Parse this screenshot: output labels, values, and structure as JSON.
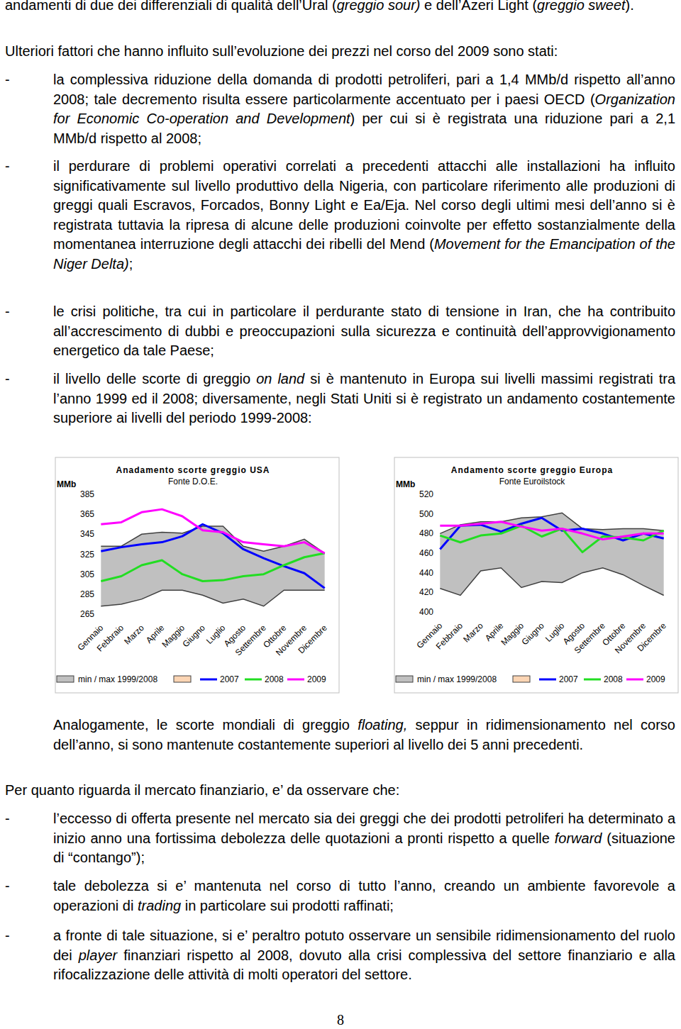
{
  "text_before": [
    {
      "runs": [
        "andamenti di due dei differenziali di qualità dell’Ural (",
        {
          "italic": "greggio sour)"
        },
        " e dell’Azeri Light (",
        {
          "italic": "greggio sweet"
        },
        ")."
      ]
    },
    {
      "runs": [
        "Ulteriori fattori che hanno influito sull’evoluzione dei prezzi nel corso del 2009 sono stati:"
      ]
    }
  ],
  "bullet": "-",
  "factors": [
    {
      "runs": [
        "la complessiva riduzione della domanda di prodotti petroliferi, pari a 1,4 MMb/d rispetto all’anno 2008; tale decremento risulta essere particolarmente accentuato per i paesi OECD (",
        {
          "italic": "Organization for Economic Co-operation and Development"
        },
        ") per cui si è registrata una riduzione pari a 2,1 MMb/d rispetto al 2008;"
      ]
    },
    {
      "runs": [
        "il perdurare di problemi operativi correlati a precedenti attacchi alle installazioni ha influito significativamente sul livello produttivo della Nigeria, con particolare riferimento alle produzioni di greggi quali Escravos, Forcados, Bonny Light e Ea/Eja. Nel corso degli ultimi mesi dell’anno si è registrata tuttavia la ripresa di alcune delle produzioni coinvolte per effetto sostanzialmente della momentanea interruzione degli attacchi dei ribelli del Mend (",
        {
          "italic": "Movement for the Emancipation of the Niger Delta)"
        },
        ";"
      ]
    },
    {
      "runs": [
        "le crisi politiche, tra cui in particolare il perdurante stato di tensione in Iran, che ha contribuito all’accrescimento di dubbi e preoccupazioni sulla sicurezza e continuità dell’approvvigionamento energetico da tale Paese;"
      ]
    },
    {
      "runs": [
        "il livello delle scorte di greggio ",
        {
          "italic": "on land"
        },
        " si è mantenuto in Europa sui livelli massimi registrati tra l’anno 1999 ed il 2008; diversamente, negli Stati Uniti si è registrato un andamento costantemente superiore ai livelli del periodo 1999-2008:"
      ]
    }
  ],
  "chart_data": [
    {
      "type": "line",
      "title": "Anadamento scorte greggio USA",
      "subtitle": "Fonte D.O.E.",
      "ylabel": "MMb",
      "categories": [
        "Gennaio",
        "Febbraio",
        "Marzo",
        "Aprile",
        "Maggio",
        "Giugno",
        "Luglio",
        "Agosto",
        "Settembre",
        "Ottobre",
        "Novembre",
        "Dicembre"
      ],
      "ylim": [
        265,
        385
      ],
      "yticks": [
        265,
        285,
        305,
        325,
        345,
        365,
        385
      ],
      "legend": "bottom",
      "series": [
        {
          "name": "min / max 1999/2008",
          "type": "range",
          "color": "#c0c0c0",
          "values": [
            333,
            333,
            345,
            347,
            346,
            353,
            353,
            333,
            328,
            333,
            340,
            326
          ],
          "low": [
            273,
            275,
            280,
            289,
            289,
            284,
            276,
            280,
            273,
            289,
            289,
            289
          ]
        },
        {
          "name": "2007",
          "color": "#0000ff",
          "values": [
            328,
            332,
            335,
            337,
            343,
            355,
            346,
            330,
            321,
            313,
            306,
            291
          ]
        },
        {
          "name": "2008",
          "color": "#22dd22",
          "values": [
            298,
            303,
            314,
            319,
            305,
            298,
            299,
            303,
            305,
            314,
            322,
            326
          ]
        },
        {
          "name": "2009",
          "color": "#ff00ff",
          "values": [
            355,
            357,
            367,
            370,
            363,
            349,
            347,
            337,
            335,
            333,
            337,
            326
          ]
        }
      ]
    },
    {
      "type": "line",
      "title": "Andamento scorte greggio Europa",
      "subtitle": "Fonte Euroilstock",
      "ylabel": "MMb",
      "categories": [
        "Gennaio",
        "Febbraio",
        "Marzo",
        "Aprile",
        "Maggio",
        "Giugno",
        "Luglio",
        "Agosto",
        "Settembre",
        "Ottobre",
        "Novembre",
        "Dicembre"
      ],
      "ylim": [
        400,
        520
      ],
      "yticks": [
        400,
        420,
        440,
        460,
        480,
        500,
        520
      ],
      "legend": "bottom",
      "series": [
        {
          "name": "min / max 1999/2008",
          "type": "range",
          "color": "#c0c0c0",
          "values": [
            480,
            489,
            492,
            492,
            496,
            497,
            501,
            485,
            484,
            485,
            485,
            483
          ],
          "low": [
            424,
            417,
            442,
            445,
            425,
            431,
            430,
            440,
            445,
            438,
            427,
            417
          ]
        },
        {
          "name": "2007",
          "color": "#0000ff",
          "values": [
            464,
            488,
            489,
            482,
            490,
            496,
            483,
            485,
            480,
            473,
            480,
            475
          ]
        },
        {
          "name": "2008",
          "color": "#22dd22",
          "values": [
            478,
            471,
            478,
            480,
            488,
            477,
            485,
            461,
            477,
            476,
            473,
            483
          ]
        },
        {
          "name": "2009",
          "color": "#ff00ff",
          "values": [
            488,
            488,
            490,
            492,
            487,
            483,
            485,
            480,
            474,
            477,
            480,
            480
          ]
        }
      ]
    }
  ],
  "text_after": [
    {
      "runs": [
        "Analogamente, le scorte mondiali di greggio ",
        {
          "italic": "floating,"
        },
        " seppur in ridimensionamento nel corso dell’anno, si sono mantenute costantemente superiori al livello dei 5 anni precedenti."
      ]
    },
    {
      "runs": [
        "Per quanto riguarda il mercato finanziario, e’ da osservare che:"
      ]
    }
  ],
  "market_points": [
    {
      "runs": [
        "l’eccesso di offerta presente nel mercato sia dei greggi che dei prodotti petroliferi ha determinato a inizio anno una fortissima debolezza delle quotazioni a pronti rispetto a quelle ",
        {
          "italic": "forward"
        },
        " (situazione di “contango”);"
      ]
    },
    {
      "runs": [
        "tale debolezza si e’ mantenuta nel corso di tutto l’anno, creando un ambiente favorevole a operazioni di ",
        {
          "italic": "trading"
        },
        " in particolare sui prodotti raffinati;"
      ]
    },
    {
      "runs": [
        "a fronte di tale situazione, si e’ peraltro potuto osservare un sensibile ridimensionamento del ruolo dei ",
        {
          "italic": "player"
        },
        " finanziari rispetto al 2008, dovuto alla crisi complessiva del settore finanziario e alla rifocalizzazione delle attività di molti operatori del settore."
      ]
    }
  ],
  "page_number": "8"
}
